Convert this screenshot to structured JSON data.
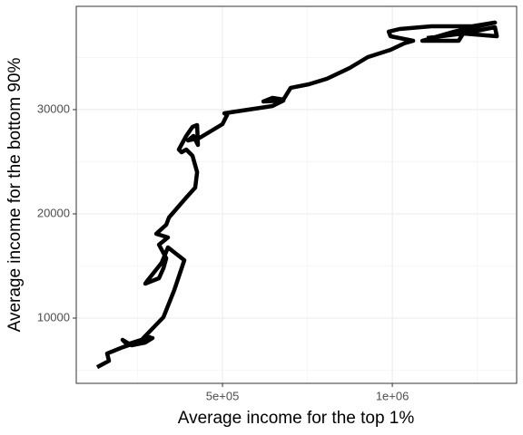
{
  "chart_data": {
    "type": "line",
    "xlabel": "Average income for the top 1%",
    "ylabel": "Average income for the bottom 90%",
    "x": [
      131000,
      165800,
      160400,
      205900,
      246000,
      286100,
      219300,
      205900,
      232600,
      272700,
      294100,
      259400,
      326200,
      358300,
      387700,
      339600,
      320900,
      278100,
      272700,
      312900,
      326200,
      334300,
      312900,
      339600,
      304800,
      334300,
      342300,
      393100,
      419800,
      425200,
      411800,
      393100,
      379700,
      371700,
      393100,
      411800,
      425200,
      427800,
      414500,
      398400,
      433200,
      500000,
      513400,
      505400,
      647100,
      679200,
      620400,
      647100,
      679200,
      700600,
      754100,
      807500,
      874400,
      927900,
      994700,
      1034800,
      1061600,
      994700,
      989400,
      1021500,
      1115100,
      1235400,
      1302200,
      1181900,
      1088300,
      1195300,
      1208600,
      1302200,
      1307600,
      1208600,
      1101700
    ],
    "values": [
      5300,
      5900,
      6600,
      7200,
      7650,
      8170,
      7480,
      7910,
      7390,
      7650,
      8090,
      7830,
      10090,
      12700,
      15560,
      16780,
      15300,
      13560,
      13300,
      13830,
      14780,
      15740,
      17040,
      17740,
      18090,
      18960,
      19650,
      21560,
      22520,
      24000,
      25570,
      26170,
      25910,
      26170,
      27480,
      28350,
      28520,
      26610,
      27480,
      27040,
      27300,
      28610,
      29480,
      29650,
      30350,
      30870,
      30780,
      31130,
      30960,
      32090,
      32430,
      32960,
      34000,
      35040,
      35740,
      36350,
      36610,
      37040,
      37480,
      37740,
      38000,
      38000,
      38350,
      37480,
      36610,
      36610,
      37300,
      37910,
      37040,
      37300,
      36870
    ],
    "color": "#000000",
    "xlim": [
      69500,
      1366000
    ],
    "ylim": [
      3740,
      39910
    ],
    "xticks": [
      {
        "value": 500000,
        "label": "5e+05"
      },
      {
        "value": 1000000,
        "label": "1e+06"
      }
    ],
    "yticks": [
      10000,
      20000,
      30000
    ],
    "x_minor_grid": [
      250000,
      750000,
      1250000
    ],
    "y_minor_grid": [
      5000,
      15000,
      25000,
      35000
    ],
    "grid": true
  }
}
